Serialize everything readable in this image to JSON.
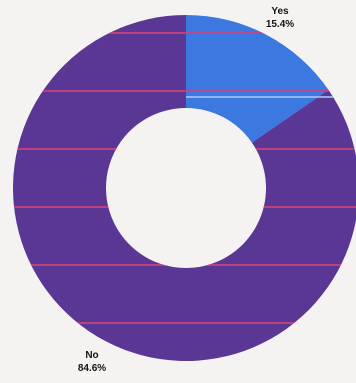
{
  "chart_data": {
    "type": "pie",
    "subtype": "donut",
    "categories": [
      "Yes",
      "No"
    ],
    "values": [
      15.4,
      84.6
    ],
    "data_labels": [
      "15.4%",
      "84.6%"
    ],
    "colors": {
      "Yes": "#3b78e0",
      "No": "#5a3794",
      "stripe": "#d0417a",
      "background": "#f4f3f1"
    },
    "title": "",
    "legend": "none"
  }
}
